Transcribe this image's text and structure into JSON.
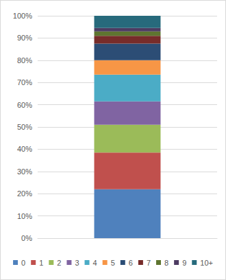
{
  "chart_data": {
    "type": "bar",
    "stacked": true,
    "categories": [
      null
    ],
    "series": [
      {
        "name": "0",
        "color": "#4F81BD",
        "values": [
          22
        ]
      },
      {
        "name": "1",
        "color": "#C0504D",
        "values": [
          16.5
        ]
      },
      {
        "name": "2",
        "color": "#9BBB59",
        "values": [
          12.5
        ]
      },
      {
        "name": "3",
        "color": "#8064A2",
        "values": [
          10.5
        ]
      },
      {
        "name": "4",
        "color": "#4BACC6",
        "values": [
          12
        ]
      },
      {
        "name": "5",
        "color": "#F79646",
        "values": [
          6.5
        ]
      },
      {
        "name": "6",
        "color": "#2C4D75",
        "values": [
          7.5
        ]
      },
      {
        "name": "7",
        "color": "#772C2A",
        "values": [
          3.5
        ]
      },
      {
        "name": "8",
        "color": "#5F7530",
        "values": [
          2
        ]
      },
      {
        "name": "9",
        "color": "#4D3B62",
        "values": [
          1.5
        ]
      },
      {
        "name": "10+",
        "color": "#276A7C",
        "values": [
          5.5
        ]
      }
    ],
    "ylim": [
      0,
      100
    ],
    "yticks": [
      {
        "value": 0,
        "label": "0%"
      },
      {
        "value": 10,
        "label": "10%"
      },
      {
        "value": 20,
        "label": "20%"
      },
      {
        "value": 30,
        "label": "30%"
      },
      {
        "value": 40,
        "label": "40%"
      },
      {
        "value": 50,
        "label": "50%"
      },
      {
        "value": 60,
        "label": "60%"
      },
      {
        "value": 70,
        "label": "70%"
      },
      {
        "value": 80,
        "label": "80%"
      },
      {
        "value": 90,
        "label": "90%"
      },
      {
        "value": 100,
        "label": "100%"
      }
    ],
    "grid": true,
    "legend": "bottom"
  }
}
